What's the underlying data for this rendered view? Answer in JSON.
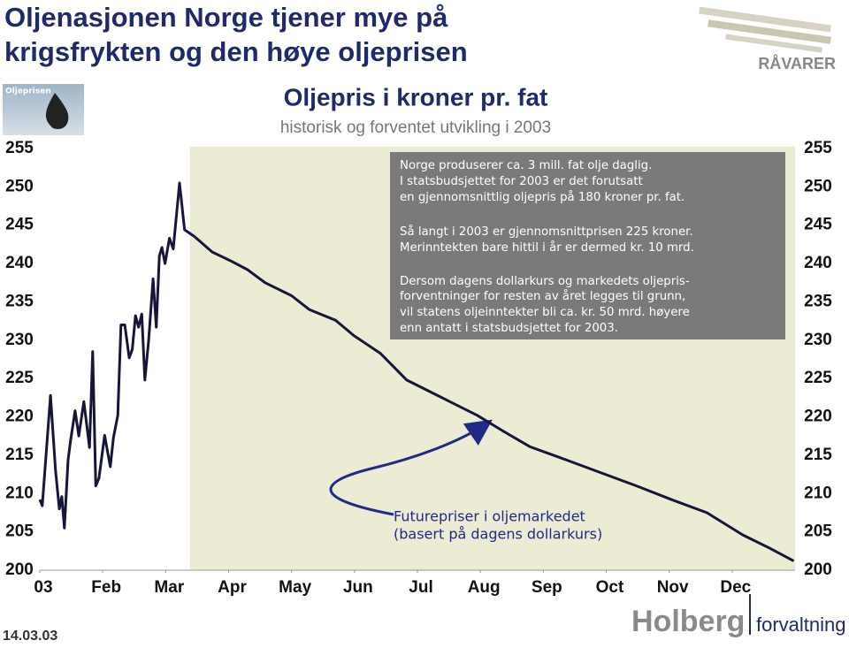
{
  "chart_data": {
    "type": "line",
    "title_lines": [
      "Oljenasjonen Norge tjener mye på",
      "krigsfrykten og den høye oljeprisen"
    ],
    "chart_title": "Oljepris i kroner pr. fat",
    "subtitle": "historisk og forventet utvikling i 2003",
    "brand_top": "RÅVARER",
    "image_label": "Oljeprisen",
    "date": "14.03.03",
    "brand_bottom": [
      "Holberg",
      "forvaltning"
    ],
    "annotation_box": [
      "Norge produserer ca. 3 mill. fat olje daglig.",
      "I statsbudsjettet for 2003 er det forutsatt",
      "en gjennomsnittlig oljepris på 180 kroner pr. fat.",
      "Så langt i 2003 er gjennomsnittprisen 225 kroner.",
      "Merinntekten bare hittil i år er dermed kr. 10 mrd.",
      "Dersom dagens dollarkurs og markedets oljepris-",
      "forventninger for resten av året legges til grunn,",
      "vil statens oljeinntekter bli ca. kr. 50 mrd. høyere",
      "enn antatt i statsbudsjettet for 2003."
    ],
    "callout": [
      "Futurepriser i oljemarkedet",
      "(basert på dagens dollarkurs)"
    ],
    "color": "#16163a",
    "x": [
      0,
      0.04,
      0.17,
      0.25,
      0.31,
      0.35,
      0.39,
      0.45,
      0.49,
      0.56,
      0.62,
      0.7,
      0.79,
      0.84,
      0.89,
      0.94,
      1.03,
      1.12,
      1.17,
      1.24,
      1.29,
      1.35,
      1.42,
      1.47,
      1.52,
      1.57,
      1.62,
      1.67,
      1.73,
      1.8,
      1.85,
      1.9,
      1.94,
      1.99,
      2.06,
      2.12,
      2.22,
      2.3,
      2.46,
      2.74,
      3.02,
      3.3,
      3.58,
      4.0,
      4.28,
      4.7,
      4.99,
      5.41,
      5.83,
      6.39,
      6.95,
      7.37,
      7.79,
      8.36,
      8.92,
      9.48,
      10.04,
      10.6,
      11.17,
      11.59,
      11.98
    ],
    "values": [
      209.2,
      208.4,
      222.8,
      213,
      208,
      209.6,
      205.5,
      214.4,
      217,
      220.8,
      217.5,
      222,
      216,
      228.5,
      211,
      212,
      217.6,
      213.5,
      217.3,
      220.2,
      232,
      232,
      227.7,
      228.8,
      233.2,
      231.7,
      233.4,
      224.8,
      230,
      238,
      231.7,
      241,
      242.1,
      240,
      243.3,
      241.9,
      250.5,
      244.4,
      243.5,
      241.5,
      240.4,
      239.2,
      237.5,
      235.8,
      234,
      232.6,
      230.6,
      228.3,
      224.8,
      222.5,
      220.2,
      218.1,
      216.1,
      214.4,
      212.7,
      211,
      209.2,
      207.5,
      204.6,
      202.9,
      201.2
    ],
    "xlim": [
      0,
      12
    ],
    "xticks": [
      {
        "value": 0,
        "label": "03"
      },
      {
        "value": 1,
        "label": "Feb"
      },
      {
        "value": 2,
        "label": "Mar"
      },
      {
        "value": 3,
        "label": "Apr"
      },
      {
        "value": 4,
        "label": "May"
      },
      {
        "value": 5,
        "label": "Jun"
      },
      {
        "value": 6,
        "label": "Jul"
      },
      {
        "value": 7,
        "label": "Aug"
      },
      {
        "value": 8,
        "label": "Sep"
      },
      {
        "value": 9,
        "label": "Oct"
      },
      {
        "value": 10,
        "label": "Nov"
      },
      {
        "value": 11,
        "label": "Dec"
      }
    ],
    "ylim": [
      200,
      255
    ],
    "yticks": [
      200,
      205,
      210,
      215,
      220,
      225,
      230,
      235,
      240,
      245,
      250,
      255
    ]
  }
}
